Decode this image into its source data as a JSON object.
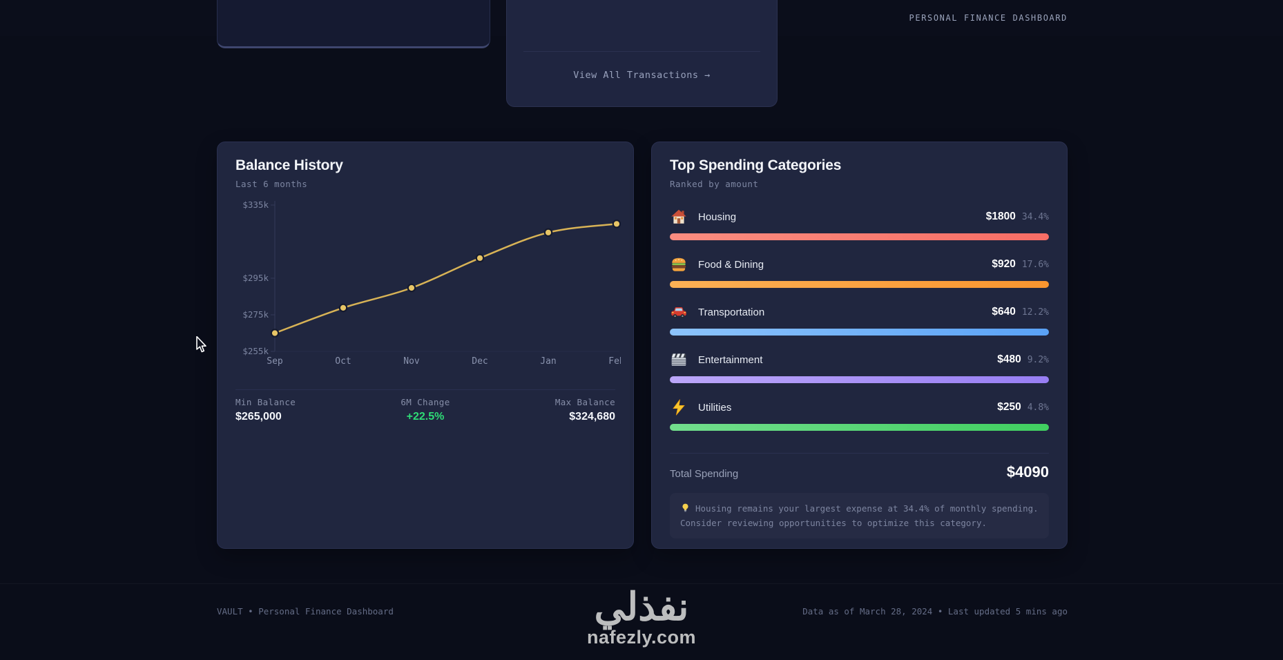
{
  "header": {
    "brand": "VAULT",
    "right_label": "PERSONAL FINANCE DASHBOARD"
  },
  "top_cards": {
    "view_all_label": "View All Transactions →"
  },
  "balance_card": {
    "title": "Balance History",
    "subtitle": "Last 6 months",
    "stats": [
      {
        "label": "Min Balance",
        "value": "$265,000"
      },
      {
        "label": "6M Change",
        "value": "+22.5%"
      },
      {
        "label": "Max Balance",
        "value": "$324,680"
      }
    ]
  },
  "chart_data": {
    "type": "line",
    "title": "Balance History",
    "subtitle": "Last 6 months",
    "x": [
      "Sep",
      "Oct",
      "Nov",
      "Dec",
      "Jan",
      "Feb"
    ],
    "values": [
      265000,
      278800,
      289700,
      306000,
      320000,
      324680
    ],
    "y_ticks": [
      "$335k",
      "$295k",
      "$275k",
      "$255k"
    ],
    "y_tick_values": [
      335000,
      295000,
      275000,
      255000
    ],
    "ylim": [
      255000,
      335000
    ],
    "grid": false,
    "line_color": "#d8b356",
    "point_color": "#e7c566"
  },
  "spending_card": {
    "title": "Top Spending Categories",
    "subtitle": "Ranked by amount",
    "categories": [
      {
        "name": "Housing",
        "icon": "house-icon",
        "amount": "$1800",
        "percent": "34.4%",
        "color_light": "#fb8d80",
        "color": "#f76d65"
      },
      {
        "name": "Food & Dining",
        "icon": "burger-icon",
        "amount": "$920",
        "percent": "17.6%",
        "color_light": "#fbb055",
        "color": "#f9952f"
      },
      {
        "name": "Transportation",
        "icon": "car-icon",
        "amount": "$640",
        "percent": "12.2%",
        "color_light": "#8cc3fb",
        "color": "#5aa2f6"
      },
      {
        "name": "Entertainment",
        "icon": "clapperboard-icon",
        "amount": "$480",
        "percent": "9.2%",
        "color_light": "#bba6f9",
        "color": "#977ef3"
      },
      {
        "name": "Utilities",
        "icon": "lightning-icon",
        "amount": "$250",
        "percent": "4.8%",
        "color_light": "#72de8d",
        "color": "#40cf60"
      }
    ],
    "total_label": "Total Spending",
    "total_value": "$4090",
    "tip": "Housing remains your largest expense at 34.4% of monthly spending. Consider reviewing opportunities to optimize this category."
  },
  "footer": {
    "left": "VAULT • Personal Finance Dashboard",
    "right": "Data as of March 28, 2024 • Last updated 5 mins ago"
  },
  "watermark": {
    "arabic": "نفذلي",
    "latin": "nafezly.com"
  },
  "colors": {
    "accent_gold": "#e6c25c",
    "positive_green": "#2edc76",
    "card_bg": "#20263f",
    "page_bg": "#0a0d19"
  }
}
